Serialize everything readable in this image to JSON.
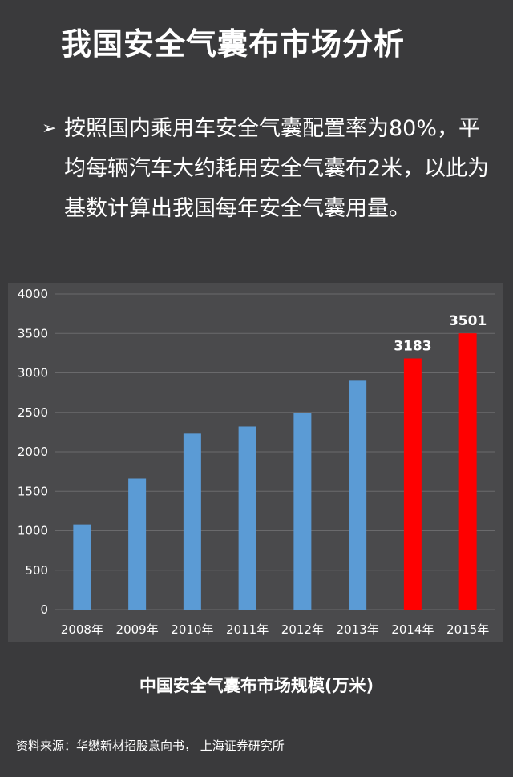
{
  "page": {
    "title": "我国安全气囊布市场分析",
    "bullet_marker": "➢",
    "bullet_text": "按照国内乘用车安全气囊配置率为80%，平均每辆汽车大约耗用安全气囊布2米，以此为基数计算出我国每年安全气囊用量。",
    "caption": "中国安全气囊布市场规模(万米)",
    "source": "资料来源：华懋新材招股意向书， 上海证券研究所"
  },
  "colors": {
    "background": "#3a3a3c",
    "panel": "#4a4a4c",
    "historical_bar": "#5b9bd5",
    "forecast_bar": "#ff0000",
    "grid": "#6a6a6c",
    "text": "#ffffff"
  },
  "chart_data": {
    "type": "bar",
    "title": "中国安全气囊布市场规模(万米)",
    "xlabel": "",
    "ylabel": "",
    "categories": [
      "2008年",
      "2009年",
      "2010年",
      "2011年",
      "2012年",
      "2013年",
      "2014年",
      "2015年"
    ],
    "values": [
      1080,
      1660,
      2230,
      2320,
      2490,
      2900,
      3183,
      3501
    ],
    "highlighted_categories": [
      "2014年",
      "2015年"
    ],
    "data_labels": {
      "2014年": "3183",
      "2015年": "3501"
    },
    "ylim": [
      0,
      4000
    ],
    "yticks": [
      0,
      500,
      1000,
      1500,
      2000,
      2500,
      3000,
      3500,
      4000
    ],
    "grid": true,
    "legend": "none"
  }
}
